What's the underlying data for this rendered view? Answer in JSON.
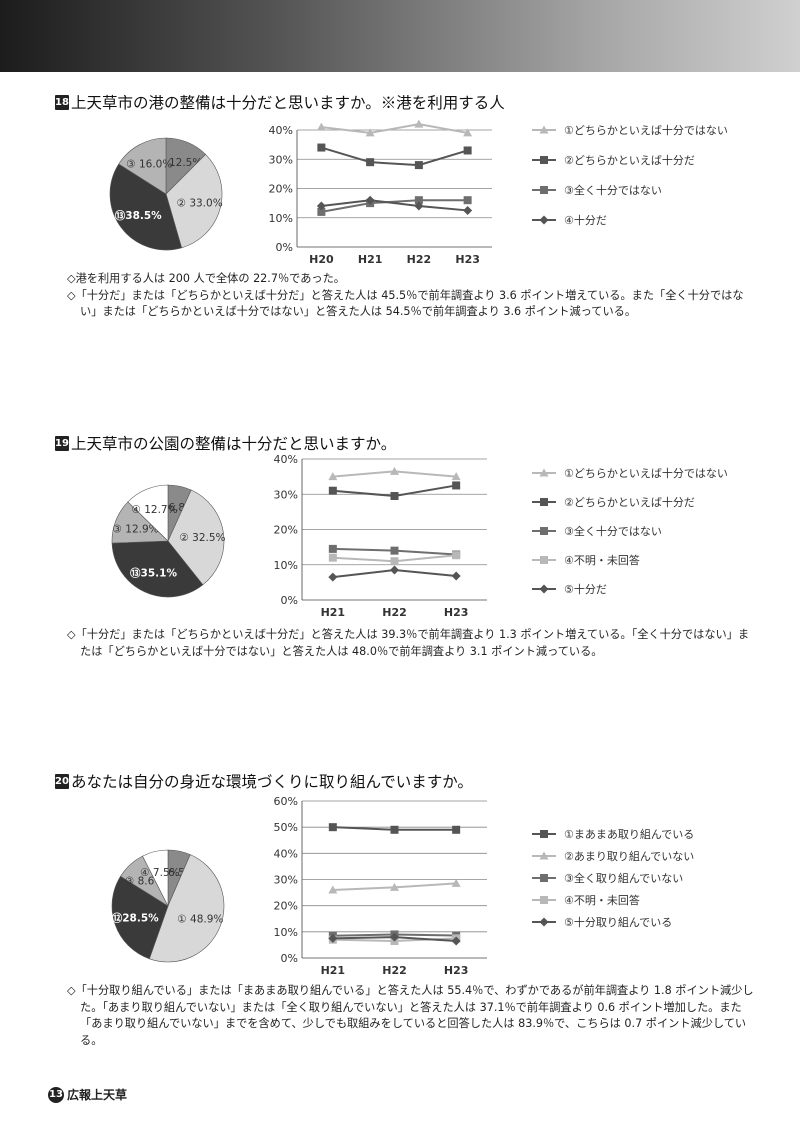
{
  "footer": {
    "page_number": "13",
    "publication": "広報上天草"
  },
  "charts": [
    {
      "number": "18",
      "title": "上天草市の港の整備は十分だと思いますか。※港を利用する人",
      "pie": {
        "slices": [
          {
            "value": 12.5,
            "label": "④ 12.5%",
            "color": "#8a8a8a"
          },
          {
            "value": 33.0,
            "label": "② 33.0%",
            "color": "#d8d8d8"
          },
          {
            "value": 38.5,
            "label": "⑬38.5%",
            "color": "#3a3a3a"
          },
          {
            "value": 16.0,
            "label": "③ 16.0%",
            "color": "#b4b4b4"
          }
        ]
      },
      "chart_data": {
        "type": "line",
        "categories": [
          "H20",
          "H21",
          "H22",
          "H23"
        ],
        "ylim": [
          0,
          40
        ],
        "yticks": [
          "0%",
          "10%",
          "20%",
          "30%",
          "40%"
        ],
        "series": [
          {
            "name": "①どちらかといえば十分ではない",
            "values": [
              41,
              39,
              42,
              39
            ],
            "marker": "triangle",
            "color": "#b8b8b8"
          },
          {
            "name": "②どちらかといえば十分だ",
            "values": [
              34,
              29,
              28,
              33
            ],
            "marker": "square",
            "color": "#555555"
          },
          {
            "name": "③全く十分ではない",
            "values": [
              12,
              15,
              16,
              16
            ],
            "marker": "square",
            "color": "#6e6e6e"
          },
          {
            "name": "④十分だ",
            "values": [
              14,
              16,
              14,
              12.5
            ],
            "marker": "diamond",
            "color": "#555555"
          }
        ]
      },
      "notes": [
        "◇港を利用する人は 200 人で全体の 22.7％であった。",
        "◇「十分だ」または「どちらかといえば十分だ」と答えた人は 45.5％で前年調査より 3.6 ポイント増えている。また「全く十分ではない」または「どちらかといえば十分ではない」と答えた人は 54.5％で前年調査より 3.6 ポイント減っている。"
      ]
    },
    {
      "number": "19",
      "title": "上天草市の公園の整備は十分だと思いますか。",
      "pie": {
        "slices": [
          {
            "value": 6.8,
            "label": "⑤ 6.8%",
            "color": "#8a8a8a"
          },
          {
            "value": 32.5,
            "label": "② 32.5%",
            "color": "#d8d8d8"
          },
          {
            "value": 35.1,
            "label": "⑬35.1%",
            "color": "#3a3a3a"
          },
          {
            "value": 12.9,
            "label": "③ 12.9%",
            "color": "#b4b4b4"
          },
          {
            "value": 12.7,
            "label": "④ 12.7%",
            "color": "#ffffff"
          }
        ]
      },
      "chart_data": {
        "type": "line",
        "categories": [
          "H21",
          "H22",
          "H23"
        ],
        "ylim": [
          0,
          40
        ],
        "yticks": [
          "0%",
          "10%",
          "20%",
          "30%",
          "40%"
        ],
        "series": [
          {
            "name": "①どちらかといえば十分ではない",
            "values": [
              35,
              36.5,
              35
            ],
            "marker": "triangle",
            "color": "#b8b8b8"
          },
          {
            "name": "②どちらかといえば十分だ",
            "values": [
              31,
              29.5,
              32.5
            ],
            "marker": "square",
            "color": "#555555"
          },
          {
            "name": "③全く十分ではない",
            "values": [
              14.5,
              14,
              12.9
            ],
            "marker": "square",
            "color": "#6e6e6e"
          },
          {
            "name": "④不明・未回答",
            "values": [
              12,
              11,
              12.7
            ],
            "marker": "square",
            "color": "#b8b8b8"
          },
          {
            "name": "⑤十分だ",
            "values": [
              6.5,
              8.5,
              6.8
            ],
            "marker": "diamond",
            "color": "#555555"
          }
        ]
      },
      "notes": [
        "◇「十分だ」または「どちらかといえば十分だ」と答えた人は 39.3％で前年調査より 1.3 ポイント増えている。「全く十分ではない」または「どちらかといえば十分ではない」と答えた人は 48.0％で前年調査より 3.1 ポイント減っている。"
      ]
    },
    {
      "number": "20",
      "title": "あなたは自分の身近な環境づくりに取り組んでいますか。",
      "pie": {
        "slices": [
          {
            "value": 6.5,
            "label": "⑤ 6.5%",
            "color": "#8a8a8a"
          },
          {
            "value": 48.9,
            "label": "① 48.9%",
            "color": "#d8d8d8"
          },
          {
            "value": 28.5,
            "label": "⑫28.5%",
            "color": "#3a3a3a"
          },
          {
            "value": 8.6,
            "label": "③ 8.6%",
            "color": "#b4b4b4"
          },
          {
            "value": 7.5,
            "label": "④ 7.5%",
            "color": "#ffffff"
          }
        ]
      },
      "chart_data": {
        "type": "line",
        "categories": [
          "H21",
          "H22",
          "H23"
        ],
        "ylim": [
          0,
          60
        ],
        "yticks": [
          "0%",
          "10%",
          "20%",
          "30%",
          "40%",
          "50%",
          "60%"
        ],
        "series": [
          {
            "name": "①まあまあ取り組んでいる",
            "values": [
              50,
              49,
              49
            ],
            "marker": "square",
            "color": "#555555"
          },
          {
            "name": "②あまり取り組んでいない",
            "values": [
              26,
              27,
              28.5
            ],
            "marker": "triangle",
            "color": "#b8b8b8"
          },
          {
            "name": "③全く取り組んでいない",
            "values": [
              8.5,
              9,
              8.6
            ],
            "marker": "square",
            "color": "#6e6e6e"
          },
          {
            "name": "④不明・未回答",
            "values": [
              7,
              6.5,
              7.5
            ],
            "marker": "square",
            "color": "#b8b8b8"
          },
          {
            "name": "⑤十分取り組んでいる",
            "values": [
              7.5,
              8,
              6.5
            ],
            "marker": "diamond",
            "color": "#555555"
          }
        ]
      },
      "notes": [
        "◇「十分取り組んでいる」または「まあまあ取り組んでいる」と答えた人は 55.4％で、わずかであるが前年調査より 1.8 ポイント減少した。「あまり取り組んでいない」または「全く取り組んでいない」と答えた人は 37.1％で前年調査より 0.6 ポイント増加した。また「あまり取り組んでいない」までを含めて、少しでも取組みをしていると回答した人は 83.9％で、こちらは 0.7 ポイント減少している。"
      ]
    }
  ]
}
